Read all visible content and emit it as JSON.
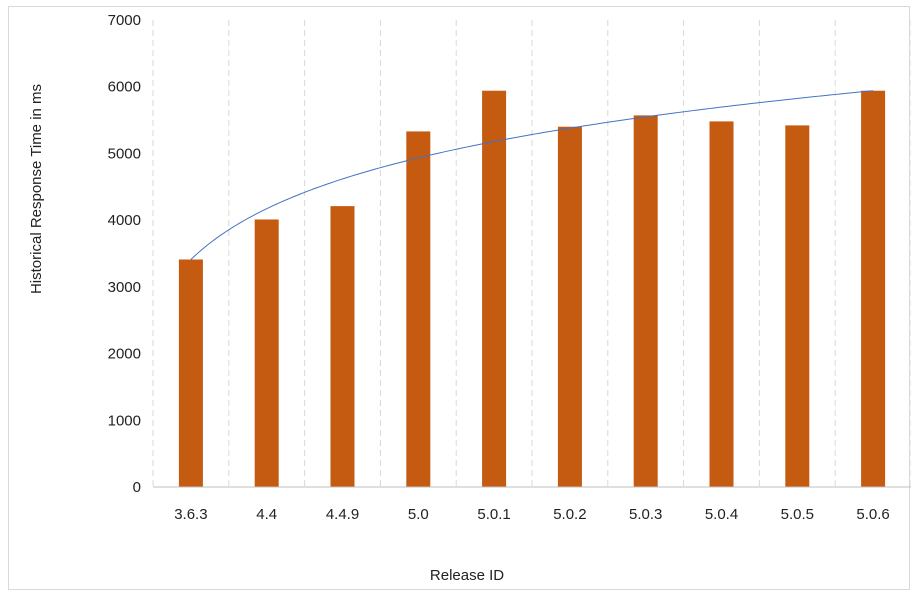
{
  "chart_data": {
    "type": "bar",
    "title": "",
    "xlabel": "Release ID",
    "ylabel": "Historical Response Time in ms",
    "categories": [
      "3.6.3",
      "4.4",
      "4.4.9",
      "5.0",
      "5.0.1",
      "5.0.2",
      "5.0.3",
      "5.0.4",
      "5.0.5",
      "5.0.6"
    ],
    "series": [
      {
        "values": [
          3410,
          4010,
          4210,
          5330,
          5940,
          5400,
          5570,
          5480,
          5420,
          5940
        ]
      }
    ],
    "trendline": {
      "type": "logarithmic",
      "start": 3410,
      "end": 5940
    },
    "ylim": [
      0,
      7000
    ],
    "yticks": [
      0,
      1000,
      2000,
      3000,
      4000,
      5000,
      6000,
      7000
    ],
    "grid": "vertical-dashed",
    "legend": "none",
    "colors": {
      "bar": "#c55a11",
      "trendline": "#4472c4",
      "grid": "#d9d9d9",
      "axis": "#bfbfbf"
    }
  }
}
